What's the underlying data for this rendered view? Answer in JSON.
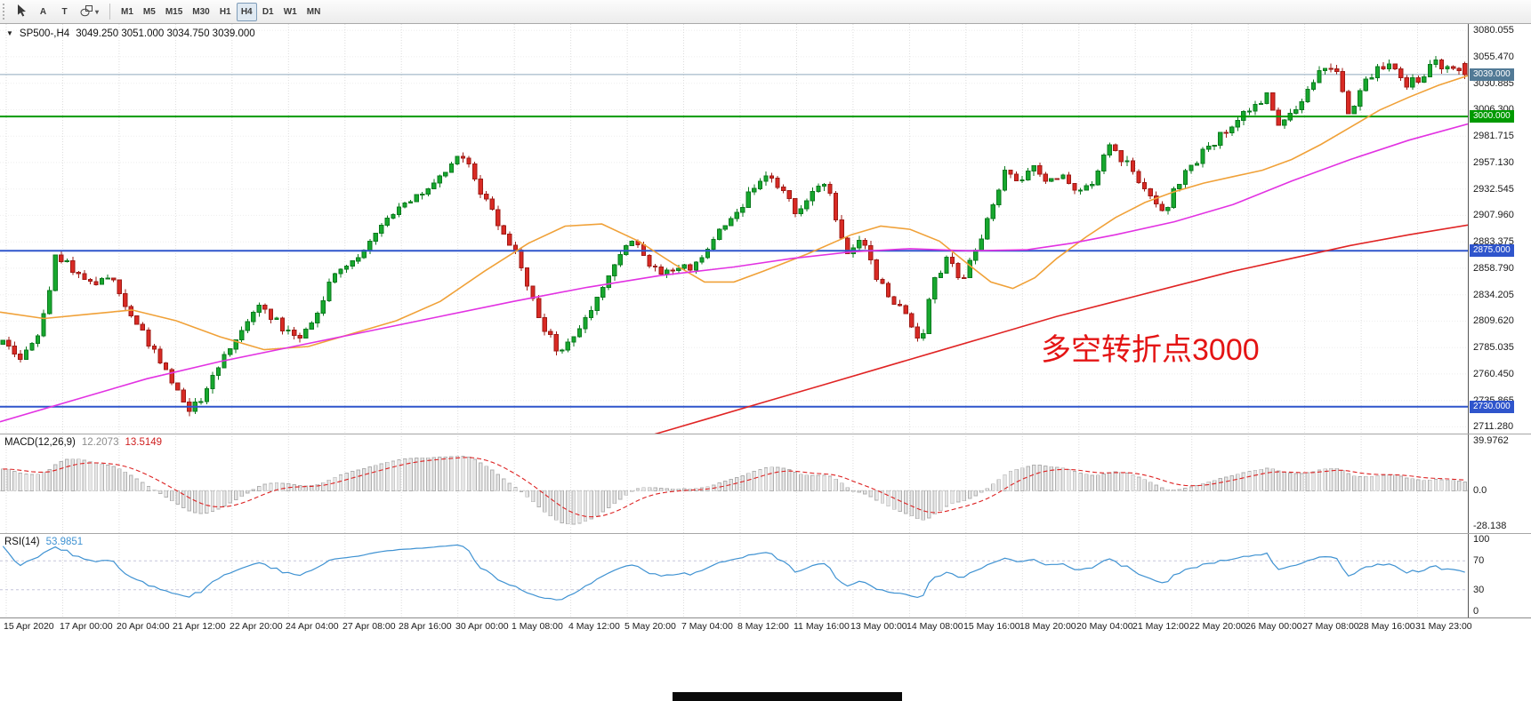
{
  "toolbar": {
    "tools": [
      {
        "name": "cursor"
      },
      {
        "name": "text-label",
        "label": "A"
      },
      {
        "name": "text-frame",
        "label": "T"
      },
      {
        "name": "shapes"
      }
    ],
    "timeframes": [
      "M1",
      "M5",
      "M15",
      "M30",
      "H1",
      "H4",
      "D1",
      "W1",
      "MN"
    ],
    "active_timeframe": "H4"
  },
  "chart": {
    "symbol_period": "SP500-,H4",
    "ohlc_text": "3049.250 3051.000 3034.750 3039.000",
    "annotation": {
      "text": "多空转折点3000",
      "color": "#e41414"
    }
  },
  "macd": {
    "label": "MACD(12,26,9)",
    "main_value": "12.2073",
    "signal_value": "13.5149",
    "axis_labels": [
      {
        "text": "39.9762",
        "value": 39.9762
      },
      {
        "text": "0.0",
        "value": 0
      },
      {
        "text": "-28.138",
        "value": -28.138
      }
    ]
  },
  "rsi": {
    "label": "RSI(14)",
    "value": "53.9851",
    "axis_labels": [
      {
        "text": "100",
        "value": 100
      },
      {
        "text": "70",
        "value": 70
      },
      {
        "text": "30",
        "value": 30
      },
      {
        "text": "0",
        "value": 0
      }
    ]
  },
  "time_axis": {
    "labels": [
      "15 Apr 2020",
      "17 Apr 00:00",
      "20 Apr 04:00",
      "21 Apr 12:00",
      "22 Apr 20:00",
      "24 Apr 04:00",
      "27 Apr 08:00",
      "28 Apr 16:00",
      "30 Apr 00:00",
      "1 May 08:00",
      "4 May 12:00",
      "5 May 20:00",
      "7 May 04:00",
      "8 May 12:00",
      "11 May 16:00",
      "13 May 00:00",
      "14 May 08:00",
      "15 May 16:00",
      "18 May 20:00",
      "20 May 04:00",
      "21 May 12:00",
      "22 May 20:00",
      "26 May 00:00",
      "27 May 08:00",
      "28 May 16:00",
      "31 May 23:00"
    ]
  },
  "chart_data": {
    "type": "candlestick",
    "symbol": "SP500-",
    "timeframe": "H4",
    "visible_range": {
      "price_min": 2705,
      "price_max": 3086
    },
    "grid_price_step": 24.585,
    "grid_price_labels": [
      "3080.055",
      "3055.470",
      "3030.885",
      "3006.300",
      "2981.715",
      "2957.130",
      "2932.545",
      "2907.960",
      "2883.375",
      "2858.790",
      "2834.205",
      "2809.620",
      "2785.035",
      "2760.450",
      "2735.865",
      "2711.280"
    ],
    "horizontal_lines": [
      {
        "price": 3039,
        "label": "3039.000",
        "color": "#527a96",
        "line_color": "#90aabe",
        "width": 1,
        "role": "last-price"
      },
      {
        "price": 3000,
        "label": "3000.000",
        "color": "#009a00",
        "width": 2,
        "role": "level"
      },
      {
        "price": 2875,
        "label": "2875.000",
        "color": "#2f55cc",
        "width": 2,
        "role": "level"
      },
      {
        "price": 2730,
        "label": "2730.000",
        "color": "#2f55cc",
        "width": 2,
        "role": "level"
      }
    ],
    "last_candle": {
      "open": 3049.25,
      "high": 3051.0,
      "low": 3034.75,
      "close": 3039.0
    },
    "candles": {
      "count": 252,
      "seed": 20,
      "volatility": 9,
      "history_bars": 60,
      "history_start": 2618,
      "anchors": [
        [
          0,
          2790
        ],
        [
          0.013,
          2772
        ],
        [
          0.027,
          2806
        ],
        [
          0.036,
          2868
        ],
        [
          0.05,
          2856
        ],
        [
          0.06,
          2846
        ],
        [
          0.073,
          2852
        ],
        [
          0.086,
          2820
        ],
        [
          0.099,
          2790
        ],
        [
          0.113,
          2758
        ],
        [
          0.126,
          2726
        ],
        [
          0.136,
          2738
        ],
        [
          0.149,
          2770
        ],
        [
          0.162,
          2796
        ],
        [
          0.175,
          2822
        ],
        [
          0.189,
          2806
        ],
        [
          0.202,
          2790
        ],
        [
          0.212,
          2812
        ],
        [
          0.225,
          2848
        ],
        [
          0.238,
          2866
        ],
        [
          0.252,
          2882
        ],
        [
          0.265,
          2906
        ],
        [
          0.278,
          2920
        ],
        [
          0.291,
          2932
        ],
        [
          0.305,
          2956
        ],
        [
          0.313,
          2966
        ],
        [
          0.321,
          2946
        ],
        [
          0.331,
          2920
        ],
        [
          0.341,
          2896
        ],
        [
          0.351,
          2870
        ],
        [
          0.361,
          2836
        ],
        [
          0.371,
          2802
        ],
        [
          0.381,
          2780
        ],
        [
          0.391,
          2800
        ],
        [
          0.401,
          2820
        ],
        [
          0.411,
          2842
        ],
        [
          0.421,
          2870
        ],
        [
          0.43,
          2886
        ],
        [
          0.44,
          2866
        ],
        [
          0.45,
          2850
        ],
        [
          0.46,
          2862
        ],
        [
          0.47,
          2856
        ],
        [
          0.483,
          2880
        ],
        [
          0.497,
          2906
        ],
        [
          0.51,
          2926
        ],
        [
          0.523,
          2946
        ],
        [
          0.533,
          2930
        ],
        [
          0.543,
          2912
        ],
        [
          0.553,
          2926
        ],
        [
          0.563,
          2938
        ],
        [
          0.571,
          2900
        ],
        [
          0.579,
          2872
        ],
        [
          0.589,
          2886
        ],
        [
          0.599,
          2846
        ],
        [
          0.609,
          2830
        ],
        [
          0.619,
          2814
        ],
        [
          0.628,
          2788
        ],
        [
          0.636,
          2846
        ],
        [
          0.646,
          2866
        ],
        [
          0.656,
          2850
        ],
        [
          0.666,
          2880
        ],
        [
          0.675,
          2906
        ],
        [
          0.685,
          2950
        ],
        [
          0.695,
          2940
        ],
        [
          0.705,
          2950
        ],
        [
          0.715,
          2938
        ],
        [
          0.725,
          2950
        ],
        [
          0.735,
          2924
        ],
        [
          0.745,
          2940
        ],
        [
          0.755,
          2972
        ],
        [
          0.765,
          2960
        ],
        [
          0.775,
          2946
        ],
        [
          0.785,
          2924
        ],
        [
          0.795,
          2912
        ],
        [
          0.805,
          2940
        ],
        [
          0.815,
          2956
        ],
        [
          0.824,
          2970
        ],
        [
          0.834,
          2986
        ],
        [
          0.844,
          2996
        ],
        [
          0.854,
          3008
        ],
        [
          0.864,
          3020
        ],
        [
          0.873,
          2990
        ],
        [
          0.881,
          3002
        ],
        [
          0.891,
          3022
        ],
        [
          0.901,
          3042
        ],
        [
          0.911,
          3050
        ],
        [
          0.921,
          2998
        ],
        [
          0.93,
          3030
        ],
        [
          0.94,
          3046
        ],
        [
          0.95,
          3052
        ],
        [
          0.96,
          3028
        ],
        [
          0.97,
          3038
        ],
        [
          0.98,
          3050
        ],
        [
          0.99,
          3044
        ],
        [
          1,
          3039
        ]
      ]
    },
    "moving_averages": [
      {
        "name": "ma-fast",
        "color": "#f0a138",
        "points": [
          [
            0,
            2818
          ],
          [
            0.03,
            2812
          ],
          [
            0.06,
            2816
          ],
          [
            0.09,
            2820
          ],
          [
            0.12,
            2810
          ],
          [
            0.15,
            2795
          ],
          [
            0.18,
            2783
          ],
          [
            0.21,
            2786
          ],
          [
            0.24,
            2798
          ],
          [
            0.27,
            2810
          ],
          [
            0.3,
            2828
          ],
          [
            0.33,
            2856
          ],
          [
            0.36,
            2882
          ],
          [
            0.385,
            2898
          ],
          [
            0.41,
            2900
          ],
          [
            0.435,
            2884
          ],
          [
            0.46,
            2862
          ],
          [
            0.48,
            2846
          ],
          [
            0.5,
            2846
          ],
          [
            0.52,
            2856
          ],
          [
            0.55,
            2872
          ],
          [
            0.58,
            2890
          ],
          [
            0.6,
            2898
          ],
          [
            0.62,
            2895
          ],
          [
            0.64,
            2884
          ],
          [
            0.66,
            2862
          ],
          [
            0.675,
            2846
          ],
          [
            0.69,
            2840
          ],
          [
            0.705,
            2850
          ],
          [
            0.72,
            2868
          ],
          [
            0.74,
            2888
          ],
          [
            0.76,
            2906
          ],
          [
            0.78,
            2920
          ],
          [
            0.8,
            2930
          ],
          [
            0.82,
            2938
          ],
          [
            0.84,
            2944
          ],
          [
            0.86,
            2950
          ],
          [
            0.88,
            2960
          ],
          [
            0.9,
            2974
          ],
          [
            0.92,
            2990
          ],
          [
            0.94,
            3006
          ],
          [
            0.96,
            3018
          ],
          [
            0.98,
            3029
          ],
          [
            1,
            3038
          ]
        ]
      },
      {
        "name": "ma-medium",
        "color": "#e232e2",
        "points": [
          [
            0,
            2716
          ],
          [
            0.05,
            2736
          ],
          [
            0.1,
            2756
          ],
          [
            0.15,
            2772
          ],
          [
            0.2,
            2786
          ],
          [
            0.25,
            2800
          ],
          [
            0.3,
            2814
          ],
          [
            0.35,
            2828
          ],
          [
            0.4,
            2841
          ],
          [
            0.45,
            2852
          ],
          [
            0.5,
            2860
          ],
          [
            0.54,
            2868
          ],
          [
            0.58,
            2874
          ],
          [
            0.62,
            2877
          ],
          [
            0.66,
            2875
          ],
          [
            0.7,
            2876
          ],
          [
            0.73,
            2882
          ],
          [
            0.76,
            2890
          ],
          [
            0.8,
            2902
          ],
          [
            0.84,
            2918
          ],
          [
            0.88,
            2940
          ],
          [
            0.92,
            2960
          ],
          [
            0.96,
            2978
          ],
          [
            1,
            2993
          ]
        ]
      },
      {
        "name": "ma-slow",
        "color": "#e02424",
        "points": [
          [
            0.44,
            2702
          ],
          [
            0.48,
            2718
          ],
          [
            0.52,
            2734
          ],
          [
            0.56,
            2750
          ],
          [
            0.6,
            2766
          ],
          [
            0.64,
            2782
          ],
          [
            0.68,
            2798
          ],
          [
            0.72,
            2814
          ],
          [
            0.76,
            2828
          ],
          [
            0.8,
            2842
          ],
          [
            0.84,
            2856
          ],
          [
            0.88,
            2868
          ],
          [
            0.92,
            2880
          ],
          [
            0.96,
            2890
          ],
          [
            1,
            2899
          ]
        ]
      }
    ],
    "indicators": {
      "macd": {
        "fast": 12,
        "slow": 26,
        "signal": 9,
        "range": [
          -28.138,
          39.9762
        ]
      },
      "rsi": {
        "period": 14,
        "range": [
          0,
          100
        ],
        "levels": [
          70,
          30
        ]
      }
    },
    "colors": {
      "up": "#17a82e",
      "up_border": "#0b7a1e",
      "down": "#d92a24",
      "down_border": "#9e1b16",
      "macd_hist": "#e6e6e6",
      "macd_hist_border": "#b0b0b0",
      "macd_signal": "#dd2222",
      "rsi_line": "#3f92d2",
      "grid": "#dcdcdc",
      "level_dashed": "#c6c6dc"
    }
  }
}
